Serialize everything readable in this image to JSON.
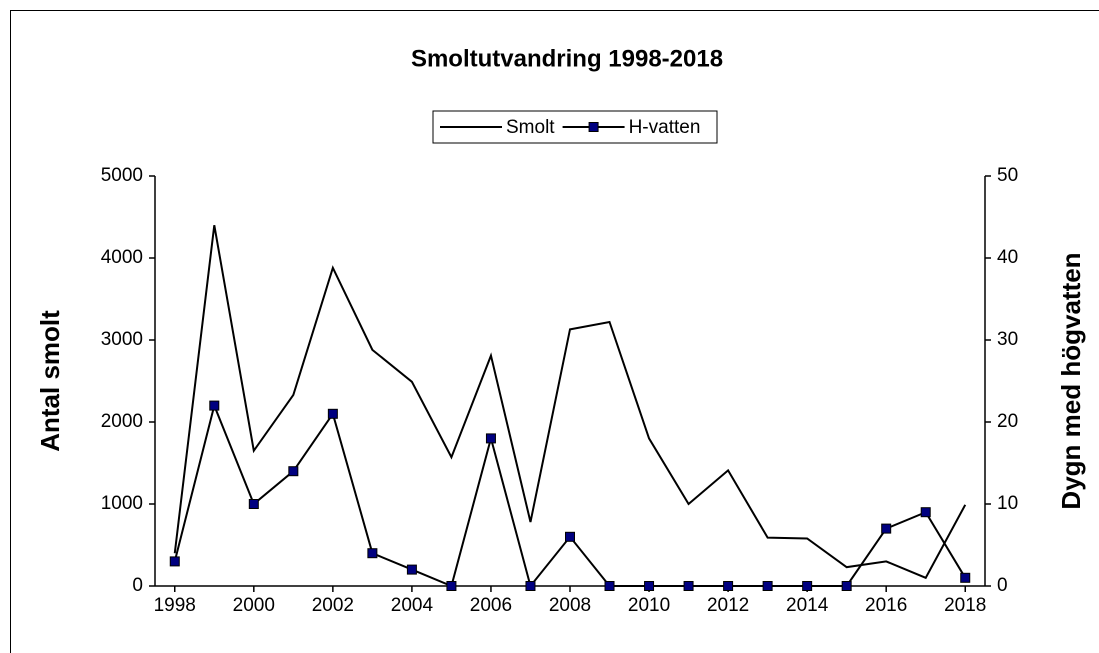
{
  "chart_data": {
    "type": "line",
    "title": "Smoltutvandring 1998-2018",
    "x": [
      1998,
      1999,
      2000,
      2001,
      2002,
      2003,
      2004,
      2005,
      2006,
      2007,
      2008,
      2009,
      2010,
      2011,
      2012,
      2013,
      2014,
      2015,
      2016,
      2017,
      2018
    ],
    "series": [
      {
        "name": "Smolt",
        "color": "#000000",
        "marker": "none",
        "values": [
          400,
          4400,
          1650,
          2330,
          3880,
          2880,
          2490,
          1570,
          2810,
          780,
          3130,
          3220,
          1800,
          1000,
          1410,
          590,
          580,
          230,
          300,
          100,
          990
        ]
      },
      {
        "name": "H-vatten",
        "color": "#000080",
        "marker": "square",
        "axis": "y2",
        "values": [
          3,
          22,
          10,
          14,
          21,
          4,
          2,
          0,
          18,
          0,
          6,
          0,
          0,
          0,
          0,
          0,
          0,
          0,
          7,
          9,
          1
        ]
      }
    ],
    "y_label": "Antal smolt",
    "y2_label": "Dygn med högvatten",
    "xlim": [
      1997.5,
      2018.5
    ],
    "xticks": [
      1998,
      2000,
      2002,
      2004,
      2006,
      2008,
      2010,
      2012,
      2014,
      2016,
      2018
    ],
    "ylim": [
      0,
      5000
    ],
    "yticks": [
      0,
      1000,
      2000,
      3000,
      4000,
      5000
    ],
    "y2lim": [
      0,
      50
    ],
    "y2ticks": [
      0,
      10,
      20,
      30,
      40,
      50
    ],
    "grid": false,
    "legend": "top"
  }
}
